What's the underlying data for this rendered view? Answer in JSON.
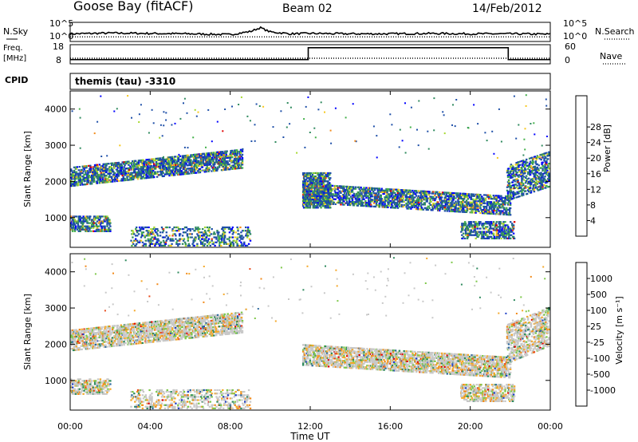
{
  "header": {
    "station": "Goose Bay (fitACF)",
    "beam": "Beam 02",
    "date": "14/Feb/2012"
  },
  "noise_panel": {
    "left_label": "N.Sky",
    "right_label": "N.Search",
    "ticks_left": [
      "10^5",
      "10^0"
    ],
    "ticks_right": [
      "10^5",
      "10^0"
    ]
  },
  "freq_panel": {
    "left_label_1": "Freq.",
    "left_label_2": "[MHz]",
    "right_label": "Nave",
    "ticks_left": [
      "18",
      "8"
    ],
    "ticks_right": [
      "60",
      "0"
    ]
  },
  "cpid": {
    "label": "CPID",
    "value": "themis (tau) -3310"
  },
  "time_axis": {
    "label": "Time UT",
    "ticks": [
      "00:00",
      "04:00",
      "08:00",
      "12:00",
      "16:00",
      "20:00",
      "00:00"
    ]
  },
  "range_axis": {
    "label": "Slant Range [km]",
    "ticks": [
      "1000",
      "2000",
      "3000",
      "4000"
    ]
  },
  "power_colorbar": {
    "label": "Power [dB]",
    "ticks": [
      "4",
      "8",
      "12",
      "16",
      "20",
      "24",
      "28"
    ],
    "colors": [
      "#0000ff",
      "#1e4fa8",
      "#2f8a5e",
      "#43b04a",
      "#a6d92e",
      "#f7c81c",
      "#f28a1a",
      "#e8401a",
      "#e00000"
    ]
  },
  "velocity_colorbar": {
    "label": "Velocity [m s⁻¹]",
    "ticks": [
      "1000",
      "500",
      "100",
      "25",
      "-25",
      "-100",
      "-500",
      "-1000"
    ],
    "colors": [
      "#1e3fc8",
      "#2f6a9e",
      "#2f8a5e",
      "#7ec84a",
      "#c8c8c8",
      "#f4a82a",
      "#f28a1a",
      "#e84a1a",
      "#e00000"
    ]
  },
  "chart_data": [
    {
      "type": "line",
      "name": "noise",
      "title": "",
      "x": [
        0,
        2,
        4,
        6,
        8,
        9,
        9.5,
        10,
        11,
        12,
        14,
        16,
        18,
        20,
        22,
        24
      ],
      "sky": [
        2.0,
        2.2,
        2.1,
        2.0,
        1.8,
        2.6,
        3.6,
        2.5,
        2.0,
        2.1,
        2.0,
        2.0,
        2.1,
        2.0,
        2.0,
        1.9
      ],
      "search": [
        1.2,
        1.2,
        1.2,
        1.2,
        1.2,
        1.2,
        1.2,
        1.2,
        1.2,
        1.2,
        1.2,
        1.2,
        1.2,
        1.2,
        1.2,
        1.2
      ],
      "ylim": [
        0,
        5
      ]
    },
    {
      "type": "line",
      "name": "frequency",
      "x": [
        0,
        11.9,
        11.9,
        21.9,
        21.9,
        24
      ],
      "freq": [
        10.2,
        10.2,
        16.4,
        16.4,
        10.2,
        10.2
      ],
      "ylim": [
        8,
        18
      ]
    },
    {
      "type": "heatmap",
      "name": "power",
      "xlim": [
        0,
        24
      ],
      "ylim": [
        180,
        4500
      ],
      "bands": [
        {
          "x0": 0.0,
          "x1": 8.6,
          "y0": 1900,
          "y1": 2450,
          "trend": 500,
          "density": 0.55
        },
        {
          "x0": 11.6,
          "x1": 22.0,
          "y0": 1450,
          "y1": 2000,
          "trend": -350,
          "density": 0.5
        },
        {
          "x0": 21.8,
          "x1": 24.0,
          "y0": 1500,
          "y1": 2500,
          "trend": 400,
          "density": 0.4
        },
        {
          "x0": 0.0,
          "x1": 2.0,
          "y0": 650,
          "y1": 1100,
          "trend": 0,
          "density": 0.45
        },
        {
          "x0": 3.0,
          "x1": 9.0,
          "y0": 250,
          "y1": 800,
          "trend": 0,
          "density": 0.25
        },
        {
          "x0": 19.5,
          "x1": 22.2,
          "y0": 450,
          "y1": 950,
          "trend": 0,
          "density": 0.45
        },
        {
          "x0": 11.6,
          "x1": 13.0,
          "y0": 1300,
          "y1": 2300,
          "trend": 0,
          "density": 0.6
        },
        {
          "x0": 12.0,
          "x1": 21.0,
          "y0": 180,
          "y1": 260,
          "trend": 0,
          "density": 0.25
        }
      ]
    },
    {
      "type": "heatmap",
      "name": "velocity",
      "xlim": [
        0,
        24
      ],
      "ylim": [
        180,
        4500
      ],
      "bands": [
        {
          "x0": 0.0,
          "x1": 8.6,
          "y0": 1850,
          "y1": 2450,
          "trend": 500,
          "density": 0.55
        },
        {
          "x0": 11.6,
          "x1": 22.0,
          "y0": 1450,
          "y1": 2050,
          "trend": -350,
          "density": 0.55
        },
        {
          "x0": 21.8,
          "x1": 24.0,
          "y0": 1500,
          "y1": 2600,
          "trend": 500,
          "density": 0.45
        },
        {
          "x0": 0.0,
          "x1": 2.0,
          "y0": 650,
          "y1": 1100,
          "trend": 0,
          "density": 0.45
        },
        {
          "x0": 3.0,
          "x1": 9.0,
          "y0": 250,
          "y1": 800,
          "trend": 0,
          "density": 0.25
        },
        {
          "x0": 19.5,
          "x1": 22.2,
          "y0": 450,
          "y1": 950,
          "trend": 0,
          "density": 0.45
        },
        {
          "x0": 12.0,
          "x1": 21.0,
          "y0": 180,
          "y1": 260,
          "trend": 0,
          "density": 0.25
        }
      ]
    }
  ]
}
